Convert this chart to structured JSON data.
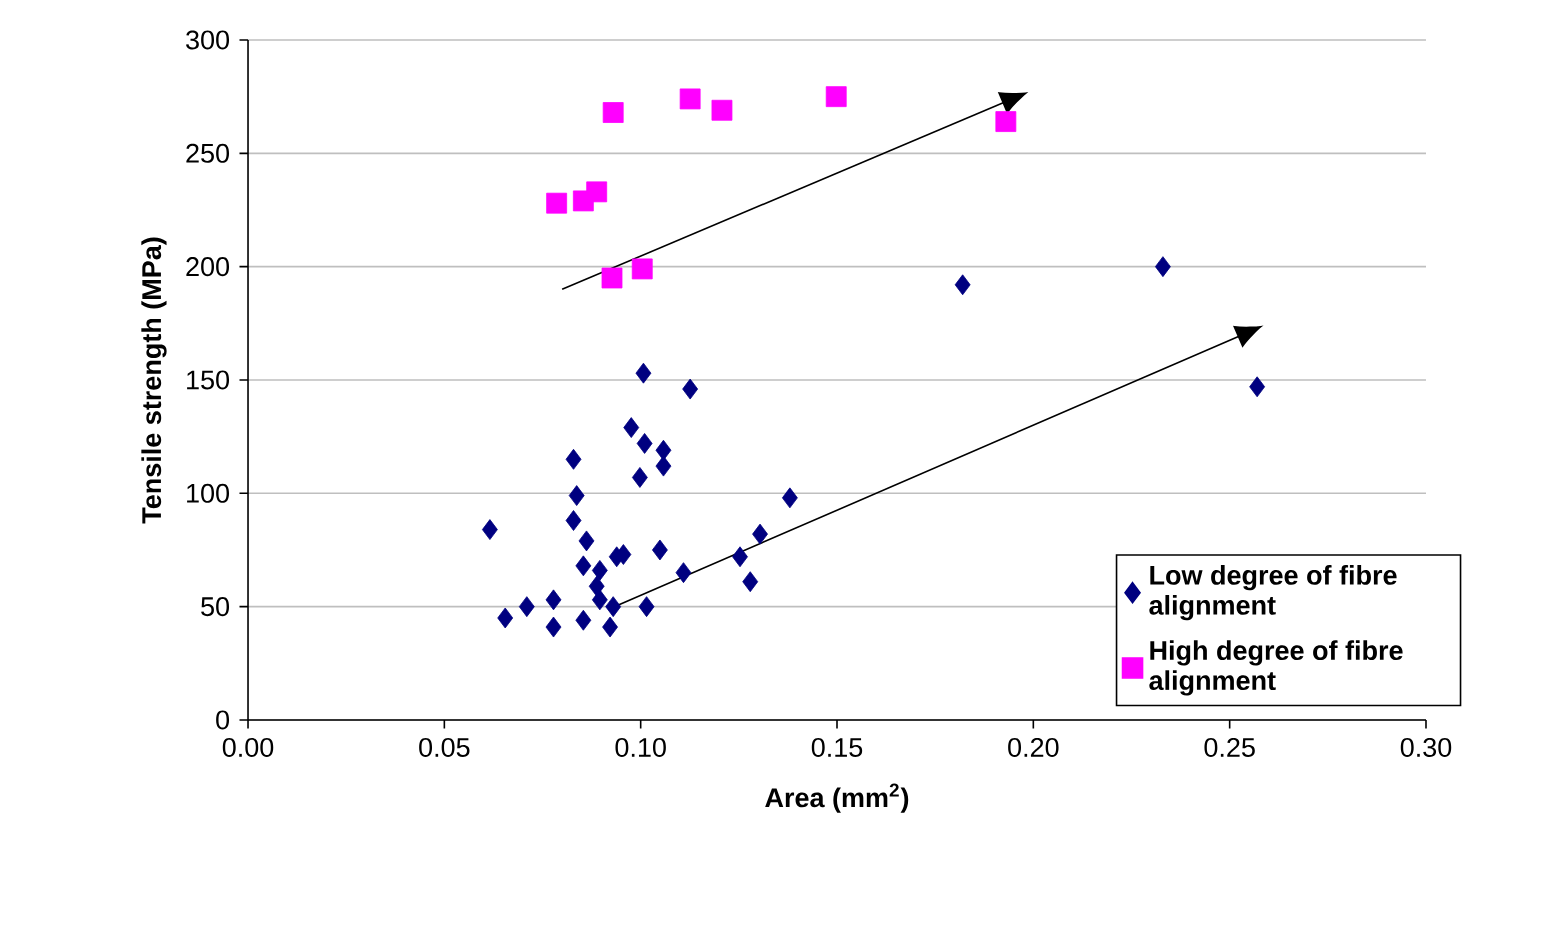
{
  "chart_data": {
    "type": "scatter",
    "xlabel": "Area (mm$^{2}$)",
    "ylabel": "Tensile strength (MPa)",
    "xlim": [
      0,
      0.3
    ],
    "ylim": [
      0,
      300
    ],
    "xticks": [
      {
        "value": 0,
        "label": "0.00"
      },
      {
        "value": 0.05,
        "label": "0.05"
      },
      {
        "value": 0.1,
        "label": "0.10"
      },
      {
        "value": 0.15,
        "label": "0.15"
      },
      {
        "value": 0.2,
        "label": "0.20"
      },
      {
        "value": 0.25,
        "label": "0.25"
      },
      {
        "value": 0.3,
        "label": "0.30"
      }
    ],
    "yticks": [
      0,
      50,
      100,
      150,
      200,
      250,
      300
    ],
    "grid": "y",
    "legend": "bottom right",
    "series": [
      {
        "name": "Low degree of fibre alignment",
        "color": "#000080",
        "marker": "diamond",
        "x": [
          0.1007,
          0.1126,
          0.0976,
          0.101,
          0.1058,
          0.1058,
          0.0998,
          0.0829,
          0.0837,
          0.0616,
          0.0829,
          0.0862,
          0.138,
          0.1049,
          0.1304,
          0.1109,
          0.1253,
          0.1279,
          0.0939,
          0.0896,
          0.0854,
          0.1015,
          0.0922,
          0.0778,
          0.0854,
          0.0655,
          0.071,
          0.0778,
          0.0896,
          0.0888,
          0.093,
          0.0956,
          0.182,
          0.233,
          0.257
        ],
        "values": [
          153,
          146,
          129,
          122,
          119,
          112,
          107,
          115,
          99,
          84,
          88,
          79,
          98,
          75,
          82,
          65,
          72,
          61,
          72,
          66,
          68,
          50,
          41,
          41,
          44,
          45,
          50,
          53,
          53,
          59,
          50,
          73,
          192,
          200,
          147
        ]
      },
      {
        "name": "High degree of fibre alignment",
        "color": "#ff00ff",
        "marker": "square",
        "x": [
          0.093,
          0.1126,
          0.1207,
          0.1498,
          0.193,
          0.0786,
          0.0854,
          0.0888,
          0.0927,
          0.1004
        ],
        "values": [
          268,
          274,
          269,
          275,
          264,
          228,
          229,
          233,
          195,
          199
        ]
      }
    ]
  }
}
